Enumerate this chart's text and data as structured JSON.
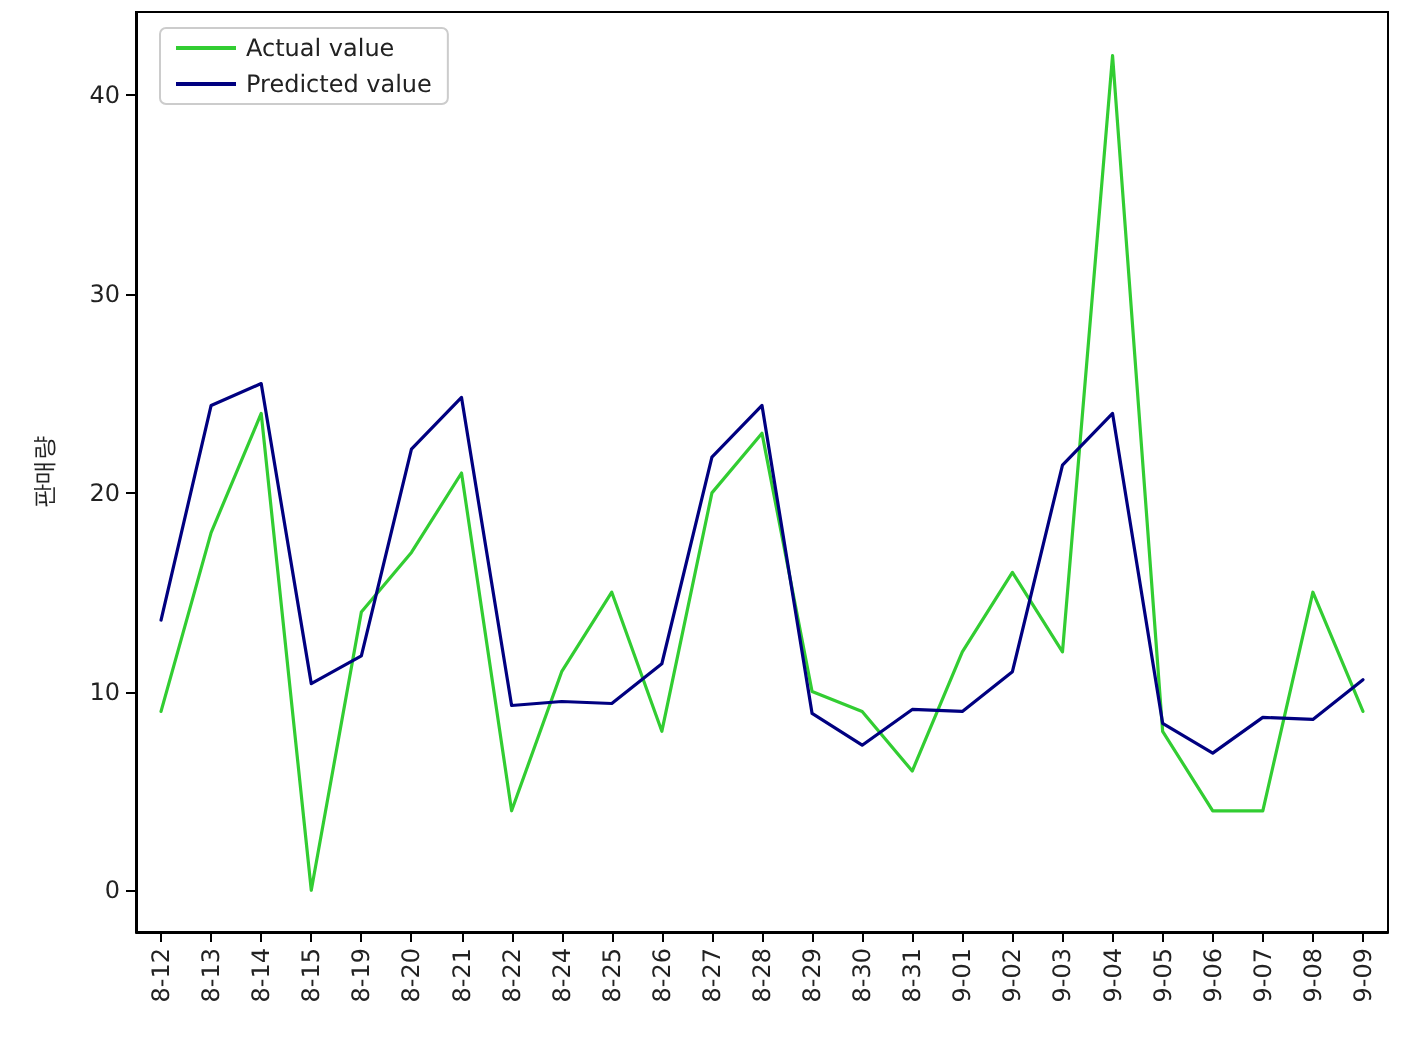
{
  "chart_data": {
    "type": "line",
    "ylabel": "판매량",
    "categories": [
      "8-12",
      "8-13",
      "8-14",
      "8-15",
      "8-19",
      "8-20",
      "8-21",
      "8-22",
      "8-24",
      "8-25",
      "8-26",
      "8-27",
      "8-28",
      "8-29",
      "8-30",
      "8-31",
      "9-01",
      "9-02",
      "9-03",
      "9-04",
      "9-05",
      "9-06",
      "9-07",
      "9-08",
      "9-09"
    ],
    "series": [
      {
        "name": "Actual value",
        "color": "#32cd32",
        "values": [
          9,
          18,
          24,
          0,
          14,
          17,
          21,
          4,
          11,
          15,
          8,
          20,
          23,
          10,
          9,
          6,
          12,
          16,
          12,
          42,
          8,
          4,
          4,
          15,
          9
        ]
      },
      {
        "name": "Predicted value",
        "color": "#000080",
        "values": [
          13.6,
          24.4,
          25.5,
          10.4,
          11.8,
          22.2,
          24.8,
          9.3,
          9.5,
          9.4,
          11.4,
          21.8,
          24.4,
          8.9,
          7.3,
          9.1,
          9.0,
          11.0,
          21.4,
          24.0,
          8.4,
          6.9,
          8.7,
          8.6,
          10.6
        ]
      }
    ],
    "ylim": [
      -2.1,
      44.2
    ],
    "yticks": [
      0,
      10,
      20,
      30,
      40
    ],
    "grid": false,
    "legend": "top left",
    "marker": "none",
    "line_style": "solid"
  }
}
